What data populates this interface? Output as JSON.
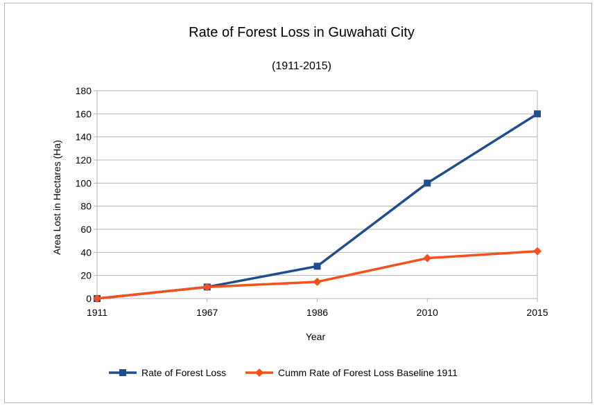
{
  "chart_data": {
    "type": "line",
    "title": "Rate of Forest Loss in Guwahati City",
    "subtitle": "(1911-2015)",
    "xlabel": "Year",
    "ylabel": "Area Lost in Hectares (Ha)",
    "categories": [
      "1911",
      "1967",
      "1986",
      "2010",
      "2015"
    ],
    "ylim": [
      0,
      180
    ],
    "yticks": [
      0,
      20,
      40,
      60,
      80,
      100,
      120,
      140,
      160,
      180
    ],
    "grid": true,
    "legend_position": "bottom",
    "series": [
      {
        "name": "Rate of Forest Loss",
        "values": [
          0,
          10,
          28,
          100,
          160
        ],
        "color": "#1f4e8c",
        "marker": "square"
      },
      {
        "name": "Cumm Rate of Forest  Loss Baseline 1911",
        "values": [
          0,
          10,
          14.5,
          35,
          41
        ],
        "color": "#f4511e",
        "marker": "diamond"
      }
    ]
  }
}
